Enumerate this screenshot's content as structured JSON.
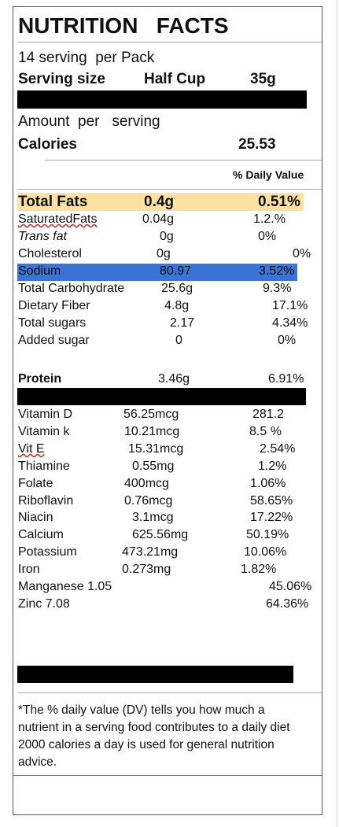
{
  "header": {
    "title": "NUTRITION   FACTS",
    "servings": "14 serving  per Pack",
    "serving_size_label": "Serving size",
    "serving_size": "Half Cup",
    "serving_weight": "35g",
    "amount_per": "Amount  per   serving",
    "calories_label": "Calories",
    "calories": "25.53",
    "daily_value_heading": "% Daily Value"
  },
  "nutrients": {
    "rows": [
      {
        "label": "Total Fats",
        "amount": "0.4g",
        "dv": "0.51%"
      },
      {
        "label": "SaturatedFats",
        "amount": "0.04g",
        "dv": "1.2.%"
      },
      {
        "label": "Trans fat",
        "amount": "0g",
        "dv": "0%"
      },
      {
        "label": "Cholesterol",
        "amount": "0g",
        "dv": "0%"
      },
      {
        "label": "Sodium",
        "amount": "80.97",
        "dv": "3.52%"
      },
      {
        "label": "Total Carbohydrate",
        "amount": "25.6g",
        "dv": "9.3%"
      },
      {
        "label": "Dietary Fiber",
        "amount": "4.8g",
        "dv": "17.1%"
      },
      {
        "label": "Total sugars",
        "amount": "2.17",
        "dv": "4.34%"
      },
      {
        "label": "Added sugar",
        "amount": "0",
        "dv": "0%"
      },
      {
        "label": "Protein",
        "amount": "3.46g",
        "dv": "6.91%"
      }
    ]
  },
  "vitamins": {
    "rows": [
      {
        "label": "Vitamin D",
        "amount": "56.25mcg",
        "dv": "281.2"
      },
      {
        "label": "Vitamin k",
        "amount": "10.21mcg",
        "dv": "8.5 %"
      },
      {
        "label": "Vit E",
        "amount": "15.31mcg",
        "dv": "2.54%"
      },
      {
        "label": "Thiamine",
        "amount": "0.55mg",
        "dv": "1.2%"
      },
      {
        "label": "Folate",
        "amount": "400mcg",
        "dv": "1.06%"
      },
      {
        "label": "Riboflavin",
        "amount": "0.76mcg",
        "dv": "58.65%"
      },
      {
        "label": "Niacin",
        "amount": "3.1mcg",
        "dv": "17.22%"
      },
      {
        "label": "Calcium",
        "amount": "625.56mg",
        "dv": "50.19%"
      },
      {
        "label": "Potassium",
        "amount": "473.21mg",
        "dv": "10.06%"
      },
      {
        "label": "Iron",
        "amount": "0.273mg",
        "dv": "1.82%"
      },
      {
        "label": "Manganese 1.05",
        "dv": "45.06%"
      },
      {
        "label": "Zinc 7.08",
        "dv": "64.36%"
      }
    ]
  },
  "footnote": "*The % daily value (DV) tells you how much a nutrient in a serving food contributes to a daily diet 2000 calories a day is used for general nutrition advice."
}
